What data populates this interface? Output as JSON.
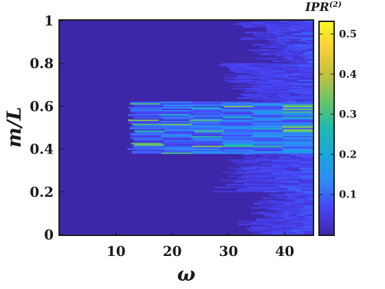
{
  "chart_data": {
    "type": "heatmap",
    "xlabel": "ω",
    "ylabel": "m/L",
    "xlim": [
      0,
      45
    ],
    "ylim": [
      0,
      1
    ],
    "x_ticks": [
      "10",
      "20",
      "30",
      "40"
    ],
    "y_ticks": [
      "0",
      "0.2",
      "0.4",
      "0.6",
      "0.8",
      "1"
    ],
    "colorbar": {
      "title": "IPR",
      "title_superscript": "(2)",
      "ticks": [
        "0.1",
        "0.2",
        "0.3",
        "0.4",
        "0.5"
      ],
      "range": [
        0,
        0.53
      ],
      "colormap": "parula"
    },
    "structure": {
      "background_value": 0.0,
      "central_band": {
        "m_over_L": [
          0.38,
          0.62
        ],
        "omega_onset": 12,
        "typical_value": 0.15,
        "peak_value": 0.3
      },
      "outer_fringe_onset_omega": {
        "m_over_L_0_or_1": 33,
        "m_over_L_0_2_or_0_8": 38
      },
      "outer_fringe_typical_value": 0.08
    }
  }
}
